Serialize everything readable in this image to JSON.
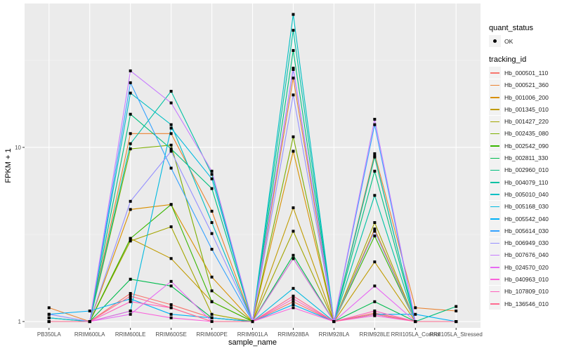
{
  "chart_data": {
    "type": "line",
    "title": "",
    "xlabel": "sample_name",
    "ylabel": "FPKM + 1",
    "yscale": "log10",
    "ylim": [
      0.92,
      67
    ],
    "yticks": [
      1,
      10
    ],
    "ytick_labels": [
      "1",
      "10"
    ],
    "grid": true,
    "categories": [
      "PB350LA",
      "RRIM600LA",
      "RRIM600LE",
      "RRIM600SE",
      "RRIM600PE",
      "RRIM901LA",
      "RRIM928BA",
      "RRIM928LA",
      "RRIM928LE",
      "RRII105LA_Control",
      "RRII105LA_Stressed"
    ],
    "legend_position": "right",
    "legend": {
      "quant_status_title": "quant_status",
      "quant_status_items": [
        "OK"
      ],
      "tracking_title": "tracking_id"
    },
    "series": [
      {
        "name": "Hb_000501_110",
        "color": "#F8766D",
        "values": [
          1.0,
          1.0,
          1.45,
          1.25,
          1.05,
          1.0,
          1.3,
          1.0,
          1.12,
          1.0,
          1.0
        ]
      },
      {
        "name": "Hb_000521_360",
        "color": "#EA8331",
        "values": [
          1.2,
          1.0,
          12.0,
          12.0,
          4.3,
          1.0,
          25.0,
          1.0,
          9.2,
          1.2,
          1.15
        ]
      },
      {
        "name": "Hb_001006_200",
        "color": "#D89000",
        "values": [
          1.0,
          1.0,
          4.4,
          4.7,
          1.8,
          1.0,
          9.5,
          1.0,
          3.4,
          1.0,
          1.0
        ]
      },
      {
        "name": "Hb_001345_010",
        "color": "#C09B00",
        "values": [
          1.0,
          1.0,
          3.0,
          2.3,
          1.3,
          1.0,
          4.5,
          1.0,
          2.2,
          1.0,
          1.0
        ]
      },
      {
        "name": "Hb_001427_220",
        "color": "#A3A500",
        "values": [
          1.0,
          1.0,
          2.9,
          3.5,
          1.1,
          1.0,
          3.3,
          1.0,
          3.7,
          1.0,
          1.0
        ]
      },
      {
        "name": "Hb_002435_080",
        "color": "#7CAE00",
        "values": [
          1.0,
          1.0,
          9.8,
          10.3,
          1.5,
          1.0,
          11.5,
          1.0,
          8.8,
          1.0,
          1.0
        ]
      },
      {
        "name": "Hb_002542_090",
        "color": "#39B600",
        "values": [
          1.05,
          1.0,
          3.0,
          4.7,
          1.3,
          1.0,
          2.3,
          1.0,
          3.1,
          1.0,
          1.0
        ]
      },
      {
        "name": "Hb_002811_330",
        "color": "#00BB4E",
        "values": [
          1.0,
          1.0,
          1.75,
          1.6,
          1.05,
          1.0,
          2.4,
          1.0,
          1.3,
          1.0,
          1.0
        ]
      },
      {
        "name": "Hb_002960_010",
        "color": "#00BF7D",
        "values": [
          1.0,
          1.0,
          15.5,
          9.8,
          5.8,
          1.0,
          36.0,
          1.0,
          7.3,
          1.0,
          1.22
        ]
      },
      {
        "name": "Hb_004079_110",
        "color": "#00C1A3",
        "values": [
          1.0,
          1.0,
          10.5,
          21.0,
          7.0,
          1.0,
          47.0,
          1.0,
          5.3,
          1.0,
          1.0
        ]
      },
      {
        "name": "Hb_005010_040",
        "color": "#00BFC4",
        "values": [
          1.0,
          1.0,
          20.5,
          13.5,
          3.7,
          1.0,
          58.0,
          1.0,
          8.9,
          1.0,
          1.0
        ]
      },
      {
        "name": "Hb_005168_030",
        "color": "#00BAE0",
        "values": [
          1.05,
          1.0,
          1.15,
          12.9,
          6.6,
          1.0,
          1.55,
          1.0,
          1.1,
          1.0,
          1.0
        ]
      },
      {
        "name": "Hb_005542_040",
        "color": "#00B0F6",
        "values": [
          1.1,
          1.15,
          1.35,
          1.1,
          1.05,
          1.0,
          1.25,
          1.0,
          1.1,
          1.1,
          1.0
        ]
      },
      {
        "name": "Hb_005614_030",
        "color": "#35A2FF",
        "values": [
          1.0,
          1.0,
          23.5,
          7.6,
          2.6,
          1.0,
          28.0,
          1.0,
          13.5,
          1.0,
          1.0
        ]
      },
      {
        "name": "Hb_006949_030",
        "color": "#9590FF",
        "values": [
          1.1,
          1.0,
          4.9,
          9.5,
          3.2,
          1.0,
          20.0,
          1.0,
          3.3,
          1.0,
          1.0
        ]
      },
      {
        "name": "Hb_007676_040",
        "color": "#C77CFF",
        "values": [
          1.0,
          1.0,
          27.5,
          18.0,
          7.3,
          1.0,
          28.5,
          1.0,
          14.5,
          1.0,
          1.0
        ]
      },
      {
        "name": "Hb_024570_020",
        "color": "#E76BF3",
        "values": [
          1.0,
          1.0,
          1.1,
          1.7,
          1.0,
          1.0,
          2.3,
          1.0,
          1.6,
          1.0,
          1.0
        ]
      },
      {
        "name": "Hb_040963_010",
        "color": "#FA62DB",
        "values": [
          1.0,
          1.0,
          1.15,
          1.05,
          1.0,
          1.0,
          1.2,
          1.0,
          1.08,
          1.0,
          1.0
        ]
      },
      {
        "name": "Hb_107809_010",
        "color": "#FF62BC",
        "values": [
          1.0,
          1.0,
          1.3,
          1.2,
          1.0,
          1.0,
          1.35,
          1.0,
          1.15,
          1.0,
          1.0
        ]
      },
      {
        "name": "Hb_136546_010",
        "color": "#FF6C91",
        "values": [
          1.0,
          1.0,
          1.4,
          1.2,
          1.0,
          1.0,
          1.4,
          1.0,
          1.1,
          1.0,
          1.0
        ]
      }
    ]
  }
}
